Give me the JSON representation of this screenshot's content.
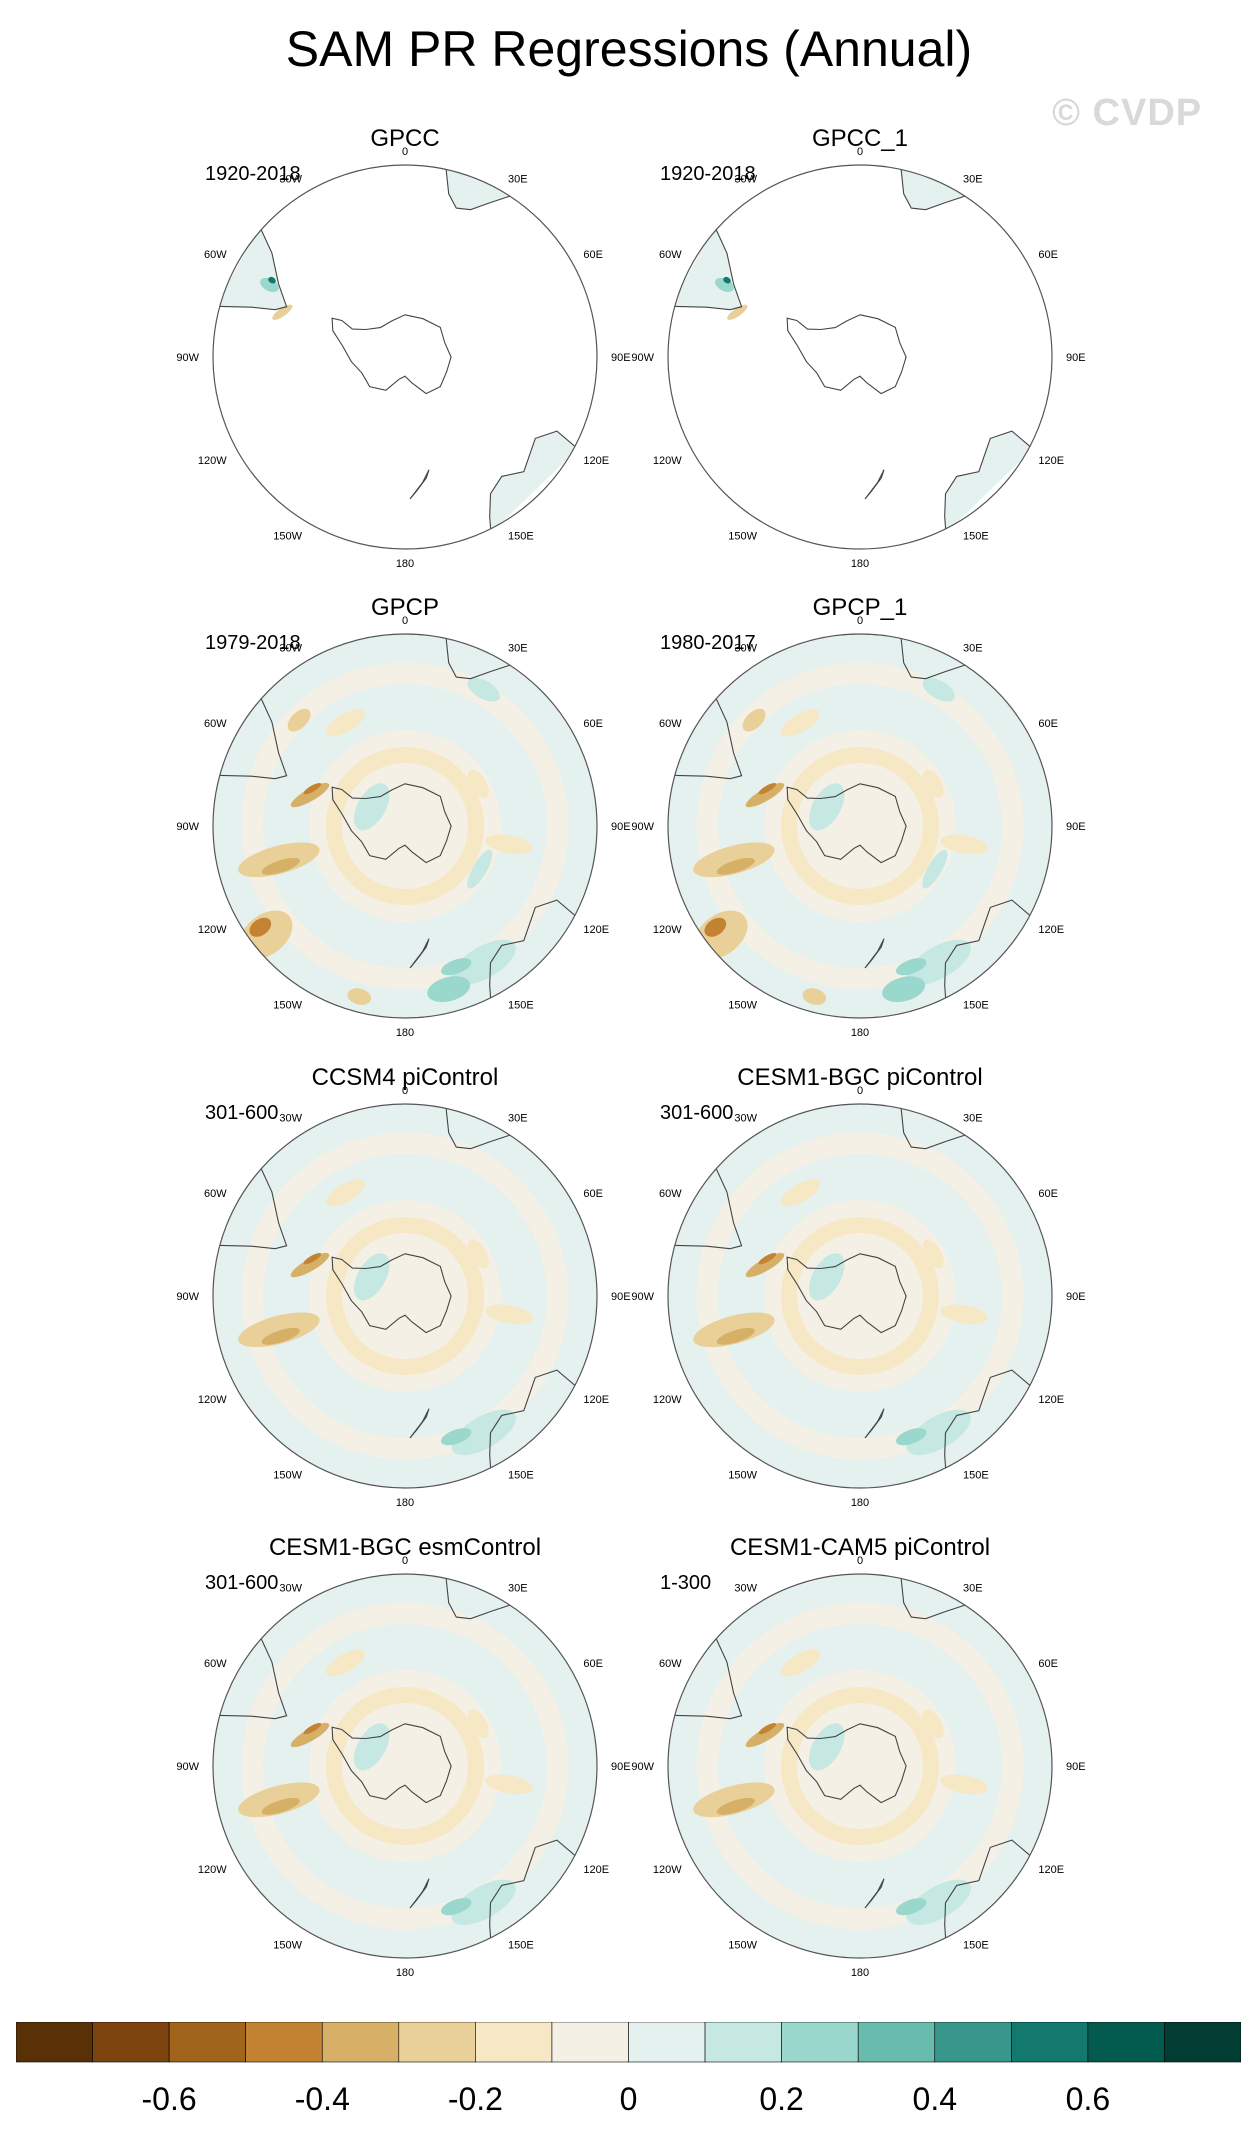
{
  "title": "SAM PR Regressions (Annual)",
  "watermark": "© CVDP",
  "lon_labels": [
    {
      "lon": 0,
      "label": "0"
    },
    {
      "lon": 30,
      "label": "30E"
    },
    {
      "lon": 60,
      "label": "60E"
    },
    {
      "lon": 90,
      "label": "90E"
    },
    {
      "lon": 120,
      "label": "120E"
    },
    {
      "lon": 150,
      "label": "150E"
    },
    {
      "lon": 180,
      "label": "180"
    },
    {
      "lon": -150,
      "label": "150W"
    },
    {
      "lon": -120,
      "label": "120W"
    },
    {
      "lon": -90,
      "label": "90W"
    },
    {
      "lon": -60,
      "label": "60W"
    },
    {
      "lon": -30,
      "label": "30W"
    }
  ],
  "panels": [
    {
      "title": "GPCC",
      "period": "1920-2018",
      "coverage": "land"
    },
    {
      "title": "GPCC_1",
      "period": "1920-2018",
      "coverage": "land"
    },
    {
      "title": "GPCP",
      "period": "1979-2018",
      "coverage": "full"
    },
    {
      "title": "GPCP_1",
      "period": "1980-2017",
      "coverage": "full"
    },
    {
      "title": "CCSM4 piControl",
      "period": "301-600",
      "coverage": "full"
    },
    {
      "title": "CESM1-BGC piControl",
      "period": "301-600",
      "coverage": "full"
    },
    {
      "title": "CESM1-BGC esmControl",
      "period": "301-600",
      "coverage": "full"
    },
    {
      "title": "CESM1-CAM5 piControl",
      "period": "1-300",
      "coverage": "full"
    }
  ],
  "colorbar": {
    "colors": [
      "#5a3107",
      "#7c430f",
      "#a0641b",
      "#c38332",
      "#d6b066",
      "#e9cf98",
      "#f6e8c5",
      "#f4f0e6",
      "#e5f1ef",
      "#c6e8e3",
      "#9ad7cd",
      "#68bcae",
      "#38978a",
      "#13796e",
      "#035b4f",
      "#023d33"
    ],
    "labels": [
      {
        "after_bin": 1,
        "text": "-0.6"
      },
      {
        "after_bin": 3,
        "text": "-0.4"
      },
      {
        "after_bin": 5,
        "text": "-0.2"
      },
      {
        "after_bin": 7,
        "text": "0"
      },
      {
        "after_bin": 9,
        "text": "0.2"
      },
      {
        "after_bin": 11,
        "text": "0.4"
      },
      {
        "after_bin": 13,
        "text": "0.6"
      }
    ]
  }
}
